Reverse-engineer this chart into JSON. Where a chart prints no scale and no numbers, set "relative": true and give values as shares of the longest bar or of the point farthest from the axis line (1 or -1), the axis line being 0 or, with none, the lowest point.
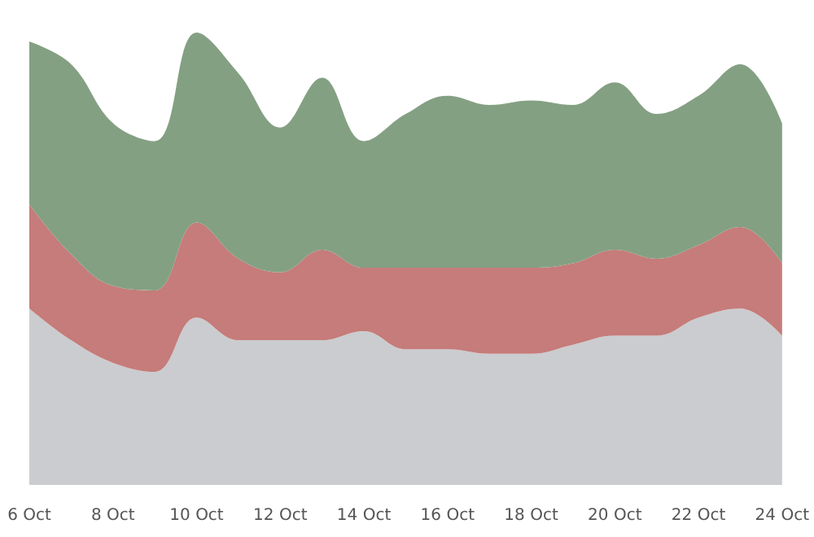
{
  "chart_data": {
    "type": "area",
    "stacked": true,
    "relative": true,
    "categories": [
      "6 Oct",
      null,
      "8 Oct",
      null,
      "10 Oct",
      null,
      "12 Oct",
      null,
      "14 Oct",
      null,
      "16 Oct",
      null,
      "18 Oct",
      null,
      "20 Oct",
      null,
      "22 Oct",
      null,
      "24 Oct"
    ],
    "series": [
      {
        "color": "#cbcccf",
        "values": [
          0.39,
          0.32,
          0.27,
          0.25,
          0.37,
          0.32,
          0.32,
          0.32,
          0.34,
          0.3,
          0.3,
          0.29,
          0.29,
          0.31,
          0.33,
          0.33,
          0.37,
          0.39,
          0.33
        ]
      },
      {
        "color": "#c57c7a",
        "values": [
          0.23,
          0.19,
          0.17,
          0.18,
          0.21,
          0.18,
          0.15,
          0.2,
          0.14,
          0.18,
          0.18,
          0.19,
          0.19,
          0.18,
          0.19,
          0.17,
          0.16,
          0.18,
          0.16
        ]
      },
      {
        "color": "#84a083",
        "values": [
          0.36,
          0.42,
          0.36,
          0.33,
          0.42,
          0.41,
          0.32,
          0.38,
          0.28,
          0.34,
          0.38,
          0.36,
          0.37,
          0.35,
          0.37,
          0.32,
          0.33,
          0.36,
          0.31
        ]
      }
    ],
    "grid": false
  }
}
